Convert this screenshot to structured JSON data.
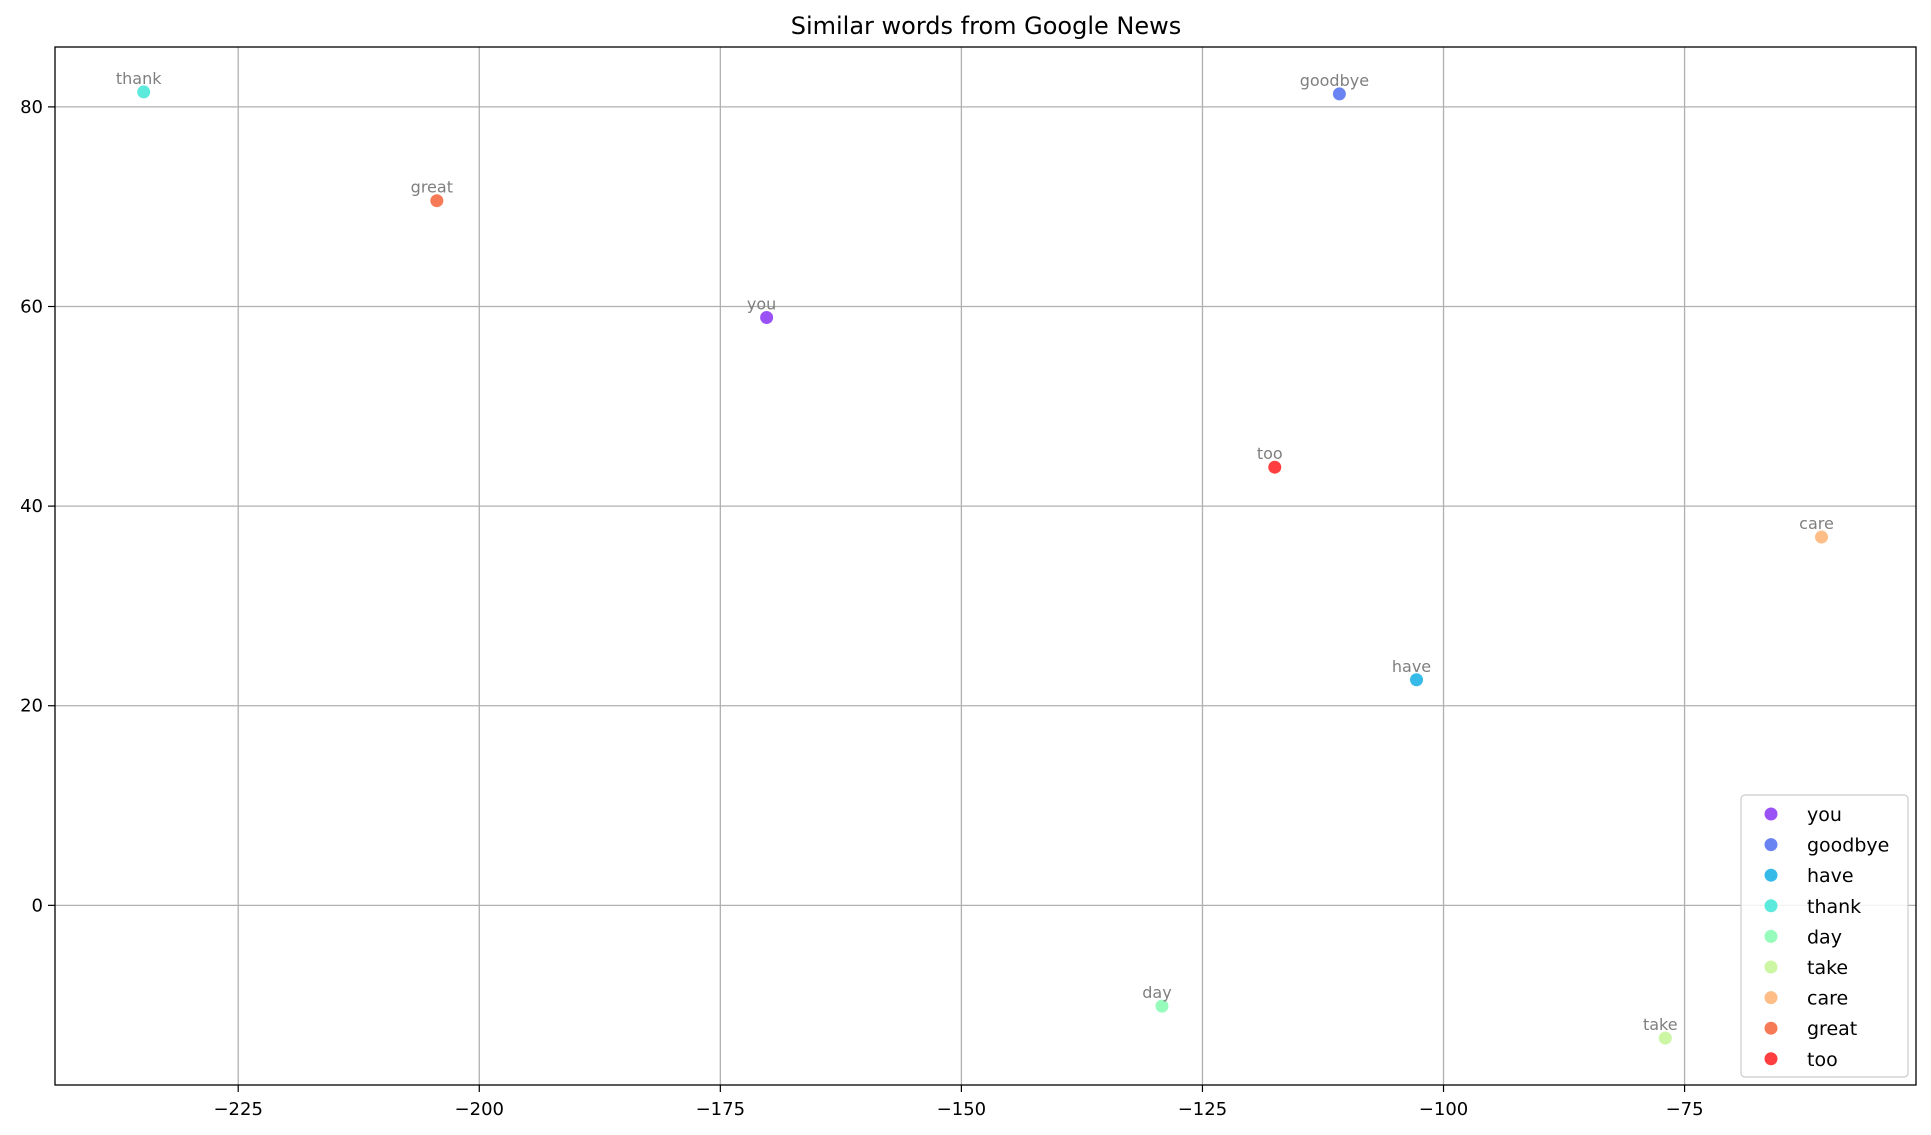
{
  "chart_data": {
    "type": "scatter",
    "title": "Similar words from Google News",
    "xlabel": "",
    "ylabel": "",
    "xlim": [
      -244,
      -51
    ],
    "ylim": [
      -18,
      86
    ],
    "x_ticks": [
      -225,
      -200,
      -175,
      -150,
      -125,
      -100,
      -75
    ],
    "x_tick_labels": [
      "−225",
      "−200",
      "−175",
      "−150",
      "−125",
      "−100",
      "−75"
    ],
    "y_ticks": [
      0,
      20,
      40,
      60,
      80
    ],
    "y_tick_labels": [
      "0",
      "20",
      "40",
      "60",
      "80"
    ],
    "grid": true,
    "legend_position": "lower-right",
    "series": [
      {
        "name": "you",
        "label": "you",
        "x": -170.2,
        "y": 58.9,
        "color": "#8f3ff5"
      },
      {
        "name": "goodbye",
        "label": "goodbye",
        "x": -110.8,
        "y": 81.3,
        "color": "#5a76f2"
      },
      {
        "name": "have",
        "label": "have",
        "x": -102.8,
        "y": 22.6,
        "color": "#20b4e6"
      },
      {
        "name": "thank",
        "label": "thank",
        "x": -234.8,
        "y": 81.5,
        "color": "#4ae8d8"
      },
      {
        "name": "day",
        "label": "day",
        "x": -129.2,
        "y": -10.1,
        "color": "#8cfcb4"
      },
      {
        "name": "take",
        "label": "take",
        "x": -77.0,
        "y": -13.3,
        "color": "#c6f49a"
      },
      {
        "name": "care",
        "label": "care",
        "x": -60.8,
        "y": 36.9,
        "color": "#ffb77a"
      },
      {
        "name": "great",
        "label": "great",
        "x": -204.4,
        "y": 70.6,
        "color": "#f56c43"
      },
      {
        "name": "too",
        "label": "too",
        "x": -117.5,
        "y": 43.9,
        "color": "#ff2a2a"
      }
    ]
  }
}
